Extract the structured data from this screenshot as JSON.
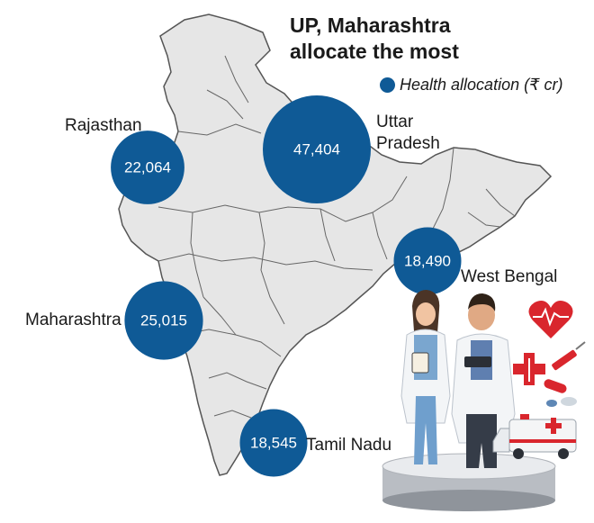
{
  "title_line1": "UP, Maharashtra",
  "title_line2": "allocate the most",
  "legend": {
    "label": "Health allocation (₹ cr)",
    "color": "#0f5a96"
  },
  "colors": {
    "map_fill": "#e6e6e6",
    "map_border": "#555555",
    "bubble": "#0f5a96"
  },
  "chart_data": {
    "type": "bubble-map",
    "unit": "₹ cr",
    "series_name": "Health allocation (₹ cr)",
    "states": [
      {
        "name": "Uttar Pradesh",
        "label_line1": "Uttar",
        "label_line2": "Pradesh",
        "value": 47404,
        "value_label": "47,404"
      },
      {
        "name": "Maharashtra",
        "label_line1": "Maharashtra",
        "value": 25015,
        "value_label": "25,015"
      },
      {
        "name": "Rajasthan",
        "label_line1": "Rajasthan",
        "value": 22064,
        "value_label": "22,064"
      },
      {
        "name": "Tamil Nadu",
        "label_line1": "Tamil Nadu",
        "value": 18545,
        "value_label": "18,545"
      },
      {
        "name": "West Bengal",
        "label_line1": "West Bengal",
        "value": 18490,
        "value_label": "18,490"
      }
    ]
  },
  "illustration": {
    "description_icons": [
      "doctor-female-icon",
      "doctor-male-icon",
      "heart-icon",
      "medical-cross-icon",
      "pills-icon",
      "syringe-icon",
      "ambulance-icon",
      "pedestal-icon"
    ]
  }
}
